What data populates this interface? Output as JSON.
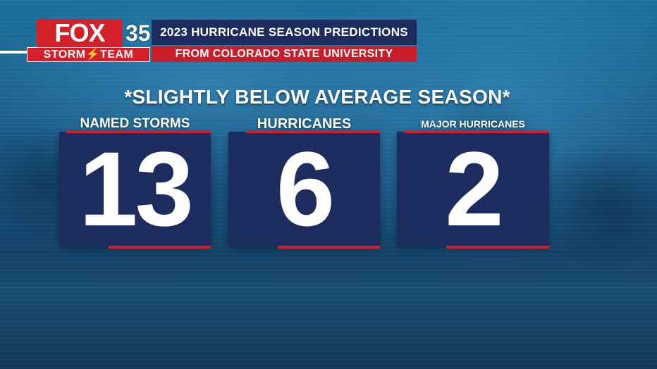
{
  "logo": {
    "brand": "FOX",
    "channel": "35",
    "team": "STORM⚡TEAM"
  },
  "header": {
    "title": "2023 HURRICANE SEASON PREDICTIONS",
    "subtitle": "FROM COLORADO STATE UNIVERSITY"
  },
  "headline": "*SLIGHTLY BELOW AVERAGE SEASON*",
  "stats": [
    {
      "label": "NAMED STORMS",
      "value": "13"
    },
    {
      "label": "HURRICANES",
      "value": "6"
    },
    {
      "label": "MAJOR HURRICANES",
      "value": "2"
    }
  ],
  "colors": {
    "navy": "#1d2c5e",
    "red": "#d3202b",
    "background": "#1a5f8c"
  }
}
